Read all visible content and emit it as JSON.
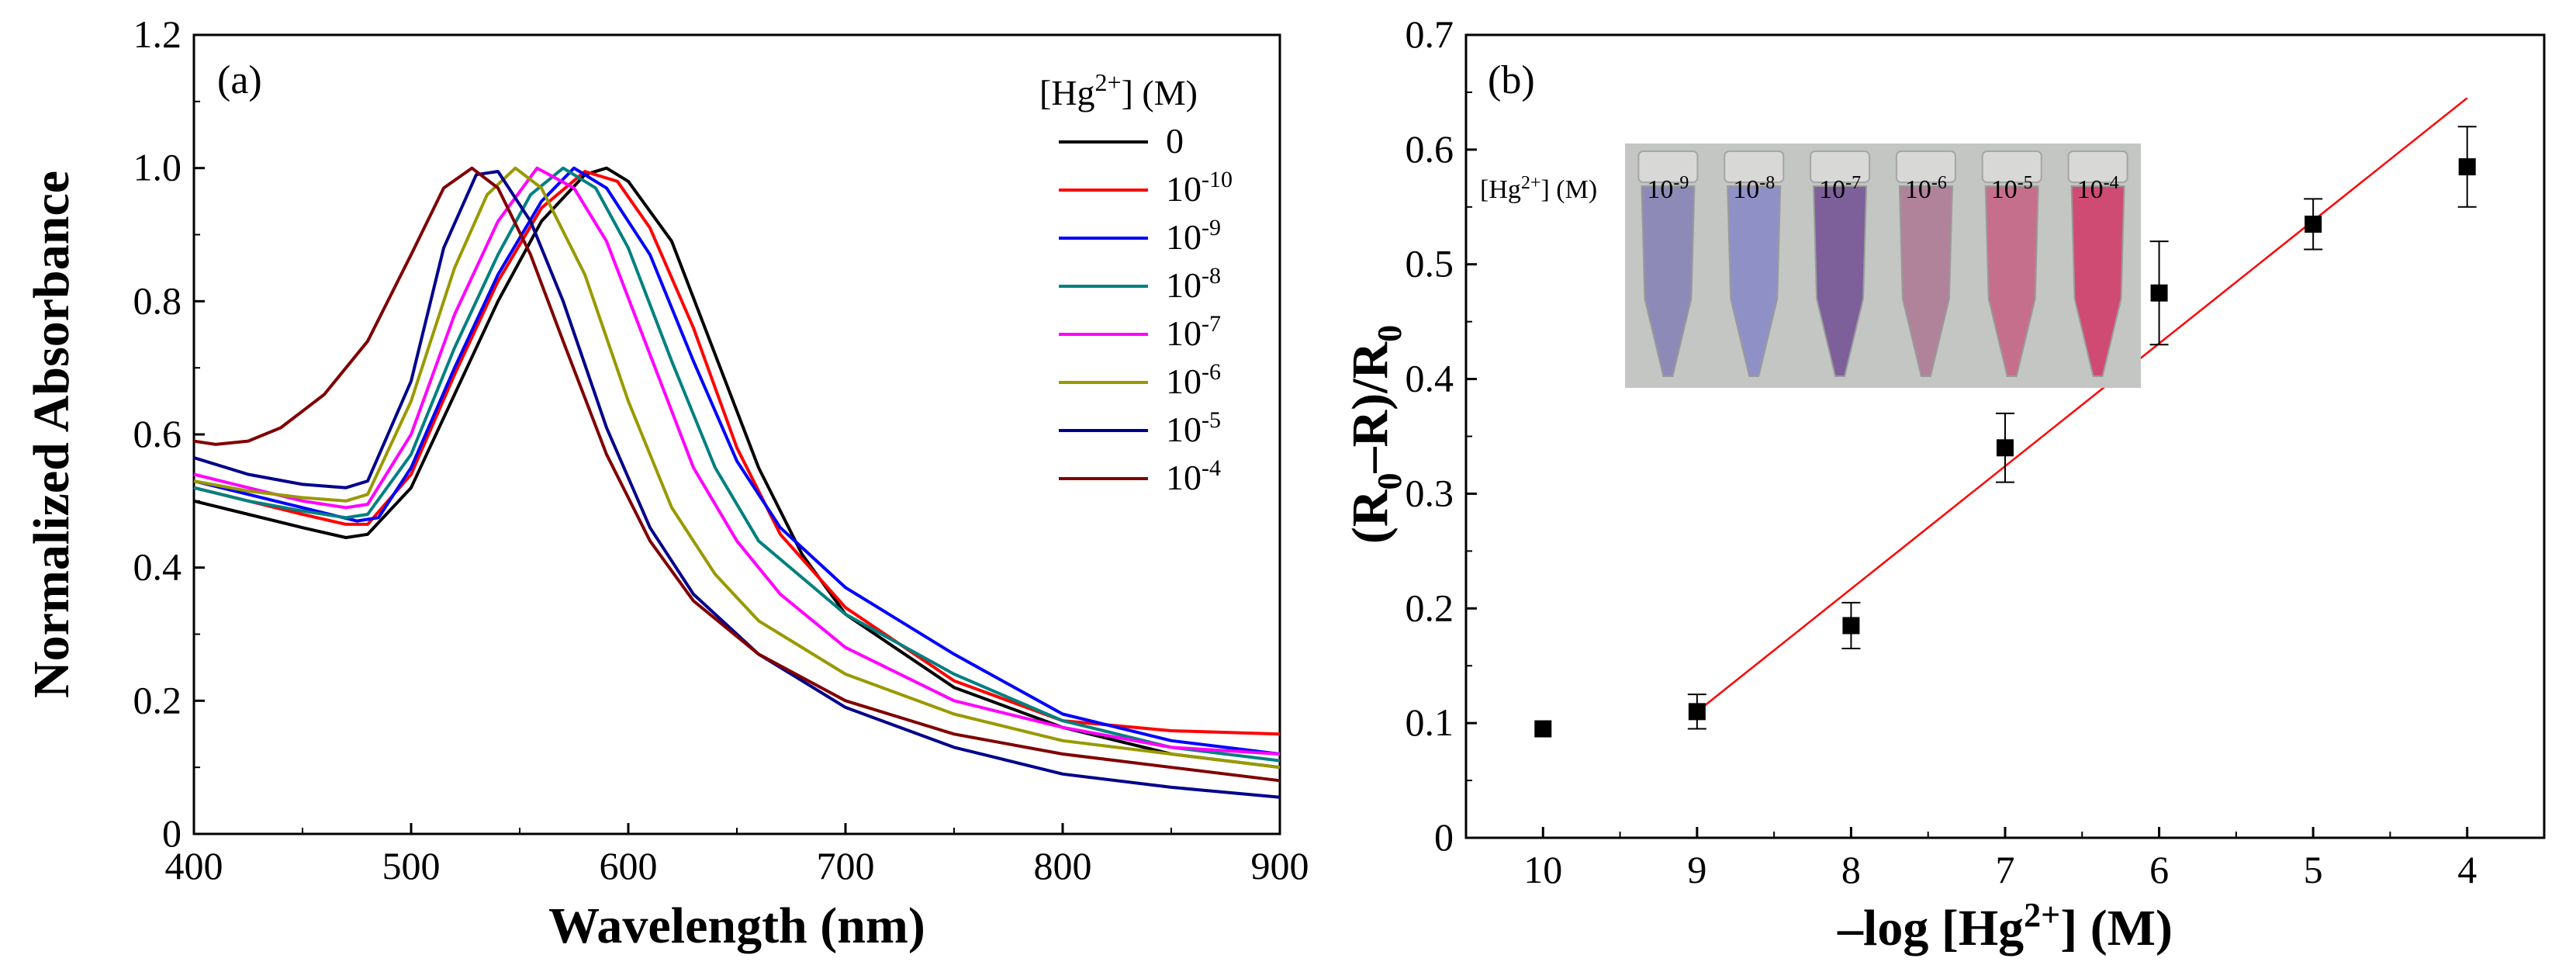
{
  "chart_data": [
    {
      "type": "line",
      "panel_label": "(a)",
      "xlabel": "Wavelength (nm)",
      "ylabel": "Normalized Absorbance",
      "xlim": [
        400,
        900
      ],
      "ylim": [
        0,
        1.2
      ],
      "xticks": [
        "400",
        "500",
        "600",
        "700",
        "800",
        "900"
      ],
      "yticks": [
        "0",
        "0.2",
        "0.4",
        "0.6",
        "0.8",
        "1.0",
        "1.2"
      ],
      "legend": {
        "title_prefix": "[Hg",
        "title_sup": "2+",
        "title_suffix": "] (M)",
        "placement": "top-right"
      },
      "series": [
        {
          "name_base": "0",
          "name_exp": "",
          "color": "#000000",
          "x": [
            400,
            425,
            450,
            470,
            480,
            500,
            520,
            540,
            560,
            580,
            590,
            600,
            620,
            640,
            660,
            680,
            700,
            750,
            800,
            850,
            900
          ],
          "y": [
            0.5,
            0.48,
            0.46,
            0.445,
            0.45,
            0.52,
            0.66,
            0.8,
            0.92,
            0.99,
            1.0,
            0.98,
            0.89,
            0.72,
            0.55,
            0.42,
            0.33,
            0.22,
            0.16,
            0.12,
            0.1
          ]
        },
        {
          "name_base": "10",
          "name_exp": "-10",
          "color": "#ff0000",
          "x": [
            400,
            425,
            450,
            470,
            480,
            500,
            520,
            540,
            560,
            580,
            595,
            610,
            630,
            650,
            670,
            700,
            750,
            800,
            850,
            900
          ],
          "y": [
            0.52,
            0.5,
            0.48,
            0.465,
            0.465,
            0.54,
            0.69,
            0.83,
            0.94,
            0.995,
            0.98,
            0.91,
            0.76,
            0.58,
            0.45,
            0.34,
            0.23,
            0.17,
            0.155,
            0.15
          ]
        },
        {
          "name_base": "10",
          "name_exp": "-9",
          "color": "#0000ff",
          "x": [
            400,
            425,
            450,
            475,
            485,
            500,
            520,
            540,
            560,
            575,
            590,
            610,
            630,
            650,
            670,
            700,
            750,
            800,
            850,
            900
          ],
          "y": [
            0.53,
            0.51,
            0.49,
            0.47,
            0.475,
            0.55,
            0.7,
            0.84,
            0.95,
            1.0,
            0.97,
            0.87,
            0.71,
            0.56,
            0.46,
            0.37,
            0.27,
            0.18,
            0.14,
            0.12
          ]
        },
        {
          "name_base": "10",
          "name_exp": "-8",
          "color": "#008080",
          "x": [
            400,
            425,
            450,
            470,
            480,
            500,
            520,
            540,
            555,
            570,
            585,
            600,
            620,
            640,
            660,
            700,
            750,
            800,
            850,
            900
          ],
          "y": [
            0.52,
            0.5,
            0.485,
            0.475,
            0.48,
            0.57,
            0.73,
            0.87,
            0.96,
            1.0,
            0.97,
            0.88,
            0.71,
            0.55,
            0.44,
            0.33,
            0.24,
            0.17,
            0.13,
            0.11
          ]
        },
        {
          "name_base": "10",
          "name_exp": "-7",
          "color": "#ff00ff",
          "x": [
            400,
            425,
            450,
            470,
            480,
            500,
            520,
            540,
            558,
            575,
            590,
            610,
            630,
            650,
            670,
            700,
            750,
            800,
            850,
            900
          ],
          "y": [
            0.54,
            0.52,
            0.5,
            0.49,
            0.495,
            0.6,
            0.78,
            0.92,
            1.0,
            0.97,
            0.89,
            0.72,
            0.55,
            0.44,
            0.36,
            0.28,
            0.2,
            0.16,
            0.13,
            0.12
          ]
        },
        {
          "name_base": "10",
          "name_exp": "-6",
          "color": "#999900",
          "x": [
            400,
            425,
            450,
            470,
            480,
            500,
            520,
            535,
            548,
            560,
            580,
            600,
            620,
            640,
            660,
            700,
            750,
            800,
            850,
            900
          ],
          "y": [
            0.53,
            0.515,
            0.505,
            0.5,
            0.51,
            0.65,
            0.85,
            0.96,
            1.0,
            0.97,
            0.84,
            0.65,
            0.49,
            0.39,
            0.32,
            0.24,
            0.18,
            0.14,
            0.12,
            0.1
          ]
        },
        {
          "name_base": "10",
          "name_exp": "-5",
          "color": "#00008b",
          "x": [
            400,
            425,
            450,
            470,
            480,
            500,
            515,
            530,
            540,
            555,
            570,
            590,
            610,
            630,
            660,
            700,
            750,
            800,
            850,
            900
          ],
          "y": [
            0.565,
            0.54,
            0.525,
            0.52,
            0.53,
            0.68,
            0.88,
            0.99,
            0.995,
            0.92,
            0.8,
            0.61,
            0.46,
            0.36,
            0.27,
            0.19,
            0.13,
            0.09,
            0.07,
            0.055
          ]
        },
        {
          "name_base": "10",
          "name_exp": "-4",
          "color": "#800000",
          "x": [
            400,
            410,
            425,
            440,
            460,
            480,
            500,
            515,
            528,
            540,
            555,
            570,
            590,
            610,
            630,
            660,
            700,
            750,
            800,
            850,
            900
          ],
          "y": [
            0.59,
            0.585,
            0.59,
            0.61,
            0.66,
            0.74,
            0.87,
            0.97,
            1.0,
            0.97,
            0.87,
            0.74,
            0.57,
            0.44,
            0.35,
            0.27,
            0.2,
            0.15,
            0.12,
            0.1,
            0.08
          ]
        }
      ]
    },
    {
      "type": "scatter",
      "panel_label": "(b)",
      "xlabel_prefix": "–log [Hg",
      "xlabel_sup": "2+",
      "xlabel_suffix": "] (M)",
      "ylabel_parts": [
        "(R",
        "0",
        "–R)/R",
        "0"
      ],
      "xlim": [
        10.5,
        3.5
      ],
      "ylim": [
        0,
        0.7
      ],
      "x_reversed": true,
      "xticks": [
        10,
        9,
        8,
        7,
        6,
        5,
        4
      ],
      "yticks": [
        "0",
        "0.1",
        "0.2",
        "0.3",
        "0.4",
        "0.5",
        "0.6",
        "0.7"
      ],
      "points": {
        "x": [
          10,
          9,
          8,
          7,
          6,
          5,
          4
        ],
        "y": [
          0.095,
          0.11,
          0.185,
          0.34,
          0.475,
          0.535,
          0.585
        ],
        "error": [
          0,
          0.015,
          0.02,
          0.03,
          0.045,
          0.022,
          0.035
        ]
      },
      "fit_line": {
        "color": "#ff0000",
        "x": [
          9,
          4
        ],
        "y": [
          0.11,
          0.645
        ]
      },
      "inset": {
        "label_prefix": "[Hg",
        "label_sup": "2+",
        "label_suffix": "] (M)",
        "tubes": [
          {
            "base": "10",
            "exp": "-9",
            "color": "#8e8ab7"
          },
          {
            "base": "10",
            "exp": "-8",
            "color": "#8f91c6"
          },
          {
            "base": "10",
            "exp": "-7",
            "color": "#7d5f9a"
          },
          {
            "base": "10",
            "exp": "-6",
            "color": "#b0839a"
          },
          {
            "base": "10",
            "exp": "-5",
            "color": "#c66f8d"
          },
          {
            "base": "10",
            "exp": "-4",
            "color": "#d04b74"
          }
        ]
      }
    }
  ]
}
